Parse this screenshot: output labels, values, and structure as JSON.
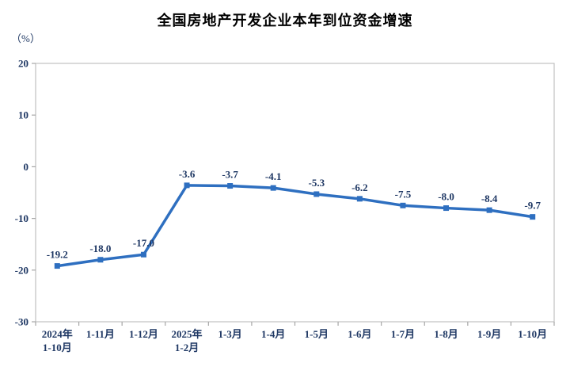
{
  "chart_data": {
    "type": "line",
    "title": "全国房地产开发企业本年到位资金增速",
    "unit_label": "（%）",
    "categories": [
      "2024年\n1-10月",
      "1-11月",
      "1-12月",
      "2025年\n1-2月",
      "1-3月",
      "1-4月",
      "1-5月",
      "1-6月",
      "1-7月",
      "1-8月",
      "1-9月",
      "1-10月"
    ],
    "values": [
      -19.2,
      -18.0,
      -17.0,
      -3.6,
      -3.7,
      -4.1,
      -5.3,
      -6.2,
      -7.5,
      -8.0,
      -8.4,
      -9.7
    ],
    "data_labels": [
      "-19.2",
      "-18.0",
      "-17.0",
      "-3.6",
      "-3.7",
      "-4.1",
      "-5.3",
      "-6.2",
      "-7.5",
      "-8.0",
      "-8.4",
      "-9.7"
    ],
    "y_ticks": [
      20,
      10,
      0,
      -10,
      -20,
      -30
    ],
    "ylim": [
      -30,
      20
    ],
    "grid": false,
    "legend": "none",
    "xlabel": "",
    "ylabel": "（%）",
    "colors": {
      "line": "#2E6FC0",
      "marker": "#2E6FC0",
      "text": "#1F3864",
      "title": "#000000",
      "axis_border": "#C0C0C0",
      "tick": "#A6A6A6",
      "background": "#FFFFFF"
    }
  }
}
